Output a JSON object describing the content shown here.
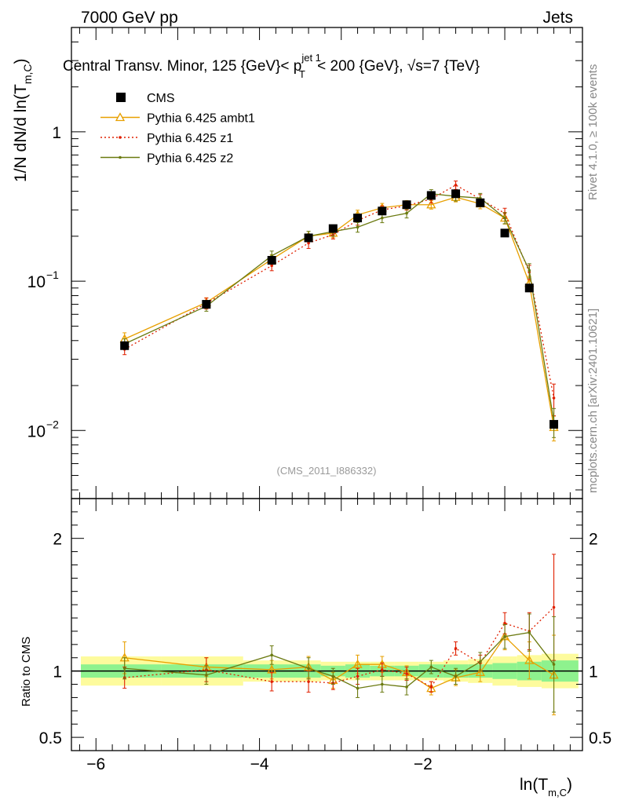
{
  "header": {
    "left": "7000 GeV pp",
    "right": "Jets"
  },
  "side": {
    "rivet": "Rivet 4.1.0, ≥ 100k events",
    "mcplots": "mcplots.cern.ch [arXiv:2401.10621]"
  },
  "chart_data": {
    "type": "line",
    "title_main": "Central Transv. Minor, 125 {GeV}< p",
    "title_sup": "jet 1",
    "title_sub": "T",
    "title_tail": " < 200 {GeV}, √s=7 {TeV}",
    "ylabel_main": "1/N    dN/d ln(T",
    "ylabel_sub": "m,C",
    "ylabel_close": ")",
    "xlabel_main": "ln(T",
    "xlabel_sub": "m,C",
    "xlabel_close": ")",
    "ratio_ylabel": "Ratio to CMS",
    "watermark": "(CMS_2011_I886332)",
    "xlim": [
      -6.3,
      -0.05
    ],
    "ylim_main": [
      0.0035,
      5.0
    ],
    "ylim_ratio": [
      0.4,
      2.3
    ],
    "x_ticks": [
      {
        "v": -6,
        "label": "−6"
      },
      {
        "v": -4,
        "label": "−4"
      },
      {
        "v": -2,
        "label": "−2"
      }
    ],
    "y_ticks_main": [
      {
        "v": 0.01,
        "base": "10",
        "exp": "−2"
      },
      {
        "v": 0.1,
        "base": "10",
        "exp": "−1"
      },
      {
        "v": 1,
        "base": "1",
        "exp": ""
      }
    ],
    "y_ticks_ratio": [
      {
        "v": 0.5,
        "label": "0.5"
      },
      {
        "v": 1,
        "label": "1"
      },
      {
        "v": 2,
        "label": "2"
      }
    ],
    "x": [
      -5.65,
      -4.65,
      -3.85,
      -3.4,
      -3.1,
      -2.8,
      -2.5,
      -2.2,
      -1.9,
      -1.6,
      -1.3,
      -1.0,
      -0.7,
      -0.4
    ],
    "xedges": [
      -6.3,
      -5.2,
      -4.2,
      -3.65,
      -3.25,
      -2.95,
      -2.65,
      -2.35,
      -2.05,
      -1.75,
      -1.45,
      -1.15,
      -0.85,
      -0.55,
      -0.1
    ],
    "band_inner": [
      0.05,
      0.05,
      0.05,
      0.05,
      0.04,
      0.05,
      0.04,
      0.04,
      0.05,
      0.05,
      0.05,
      0.06,
      0.07,
      0.08
    ],
    "band_outer": [
      0.11,
      0.11,
      0.08,
      0.08,
      0.07,
      0.07,
      0.07,
      0.07,
      0.07,
      0.08,
      0.09,
      0.11,
      0.12,
      0.13
    ],
    "legend": [
      {
        "name": "CMS",
        "color": "#000000",
        "style": "square"
      },
      {
        "name": "Pythia 6.425 ambt1",
        "color": "#e8a000",
        "style": "triangle"
      },
      {
        "name": "Pythia 6.425 z1",
        "color": "#e02000",
        "style": "dotted"
      },
      {
        "name": "Pythia 6.425 z2",
        "color": "#6b7a10",
        "style": "solid"
      }
    ],
    "series": [
      {
        "name": "CMS",
        "color": "#000000",
        "values": [
          0.037,
          0.07,
          0.138,
          0.195,
          0.225,
          0.265,
          0.295,
          0.325,
          0.375,
          0.385,
          0.335,
          0.21,
          0.09,
          0.011
        ]
      },
      {
        "name": "Pythia 6.425 ambt1",
        "color": "#e8a000",
        "values": [
          0.041,
          0.072,
          0.14,
          0.2,
          0.21,
          0.278,
          0.31,
          0.325,
          0.325,
          0.365,
          0.33,
          0.265,
          0.097,
          0.0105
        ],
        "ratio": [
          1.1,
          1.03,
          1.01,
          1.03,
          0.93,
          1.05,
          1.05,
          0.99,
          0.87,
          0.95,
          0.99,
          1.26,
          1.08,
          0.97
        ],
        "ratio_err": [
          0.12,
          0.07,
          0.07,
          0.08,
          0.06,
          0.07,
          0.06,
          0.05,
          0.05,
          0.06,
          0.07,
          0.1,
          0.14,
          0.3
        ]
      },
      {
        "name": "Pythia 6.425 z1",
        "color": "#e02000",
        "values": [
          0.035,
          0.071,
          0.127,
          0.18,
          0.205,
          0.255,
          0.3,
          0.32,
          0.355,
          0.44,
          0.355,
          0.285,
          0.115,
          0.0165
        ],
        "ratio": [
          0.95,
          1.01,
          0.92,
          0.92,
          0.91,
          0.96,
          1.01,
          0.98,
          0.88,
          1.17,
          1.06,
          1.36,
          1.3,
          1.48
        ],
        "ratio_err": [
          0.08,
          0.09,
          0.07,
          0.08,
          0.05,
          0.06,
          0.05,
          0.05,
          0.04,
          0.05,
          0.06,
          0.08,
          0.14,
          0.4
        ]
      },
      {
        "name": "Pythia 6.425 z2",
        "color": "#6b7a10",
        "values": [
          0.038,
          0.068,
          0.148,
          0.2,
          0.215,
          0.23,
          0.265,
          0.285,
          0.385,
          0.37,
          0.36,
          0.265,
          0.118,
          0.0115
        ],
        "ratio": [
          1.02,
          0.97,
          1.12,
          1.02,
          0.96,
          0.87,
          0.9,
          0.88,
          1.03,
          0.96,
          1.07,
          1.26,
          1.29,
          1.05
        ],
        "ratio_err": [
          0.08,
          0.07,
          0.07,
          0.08,
          0.06,
          0.07,
          0.06,
          0.06,
          0.05,
          0.06,
          0.07,
          0.09,
          0.14,
          0.36
        ]
      }
    ]
  }
}
